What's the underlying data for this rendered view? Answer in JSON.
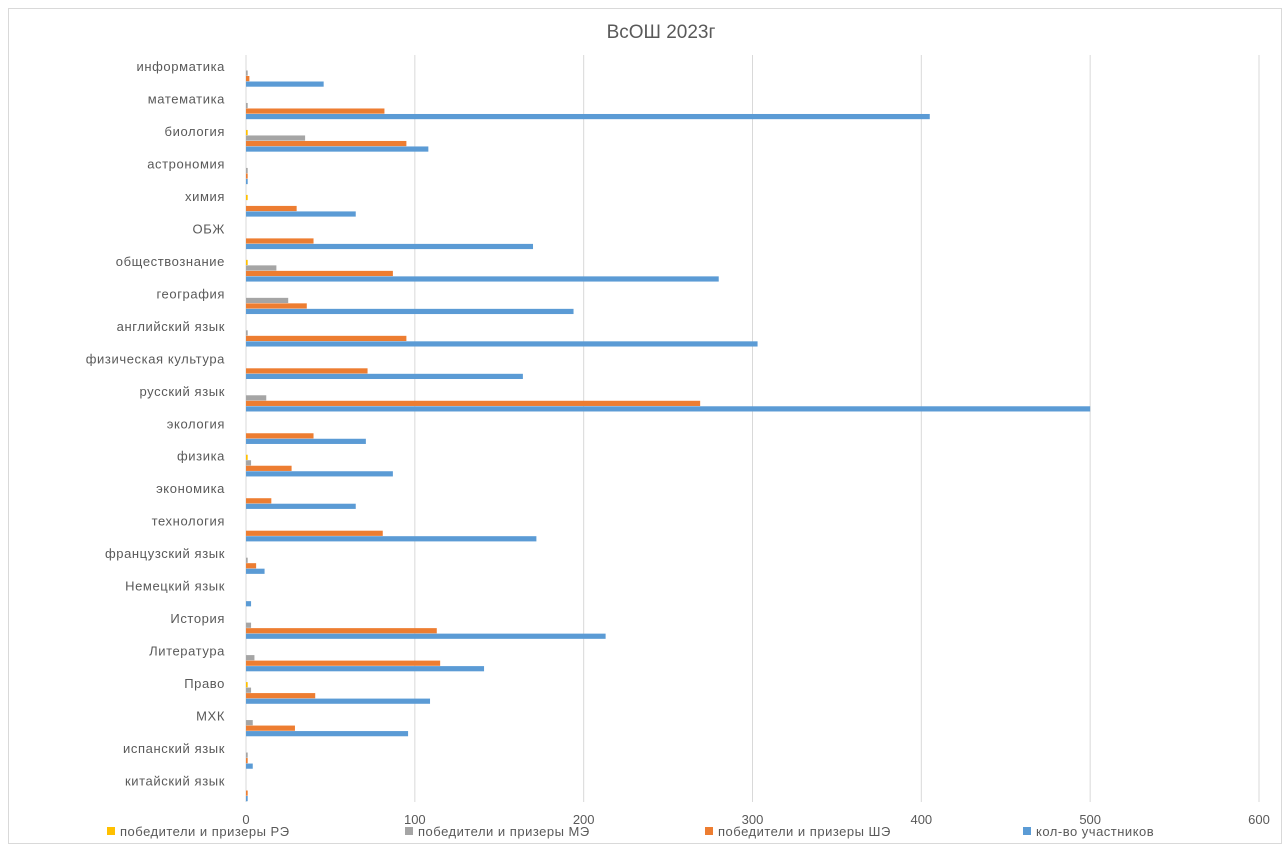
{
  "chart_data": {
    "type": "bar",
    "orientation": "horizontal",
    "title": "ВсОШ 2023г",
    "xlabel": "",
    "ylabel": "",
    "xlim": [
      0,
      600
    ],
    "xticks": [
      0,
      100,
      200,
      300,
      400,
      500,
      600
    ],
    "grid": "vertical",
    "legend_position": "bottom",
    "categories": [
      "информатика",
      "математика",
      "биология",
      "астрономия",
      "химия",
      "ОБЖ",
      "обществознание",
      "география",
      "английский язык",
      "физическая культура",
      "русский язык",
      "экология",
      "физика",
      "экономика",
      "технология",
      "французский язык",
      "Немецкий язык",
      "История",
      "Литература",
      "Право",
      "МХК",
      "испанский язык",
      "китайский язык"
    ],
    "series": [
      {
        "name": "победители и призеры РЭ",
        "color": "#ffc000",
        "values": [
          0,
          0,
          1,
          0,
          1,
          0,
          1,
          0,
          0,
          0,
          0,
          0,
          1,
          0,
          0,
          0,
          0,
          0,
          0,
          1,
          0,
          0,
          0
        ]
      },
      {
        "name": "победители и призеры МЭ",
        "color": "#a5a5a5",
        "values": [
          1,
          1,
          35,
          1,
          0,
          0,
          18,
          25,
          1,
          0,
          12,
          0,
          3,
          0,
          0,
          1,
          0,
          3,
          5,
          3,
          4,
          1,
          0
        ]
      },
      {
        "name": "победители и призеры ШЭ",
        "color": "#ed7d31",
        "values": [
          2,
          82,
          95,
          1,
          30,
          40,
          87,
          36,
          95,
          72,
          269,
          40,
          27,
          15,
          81,
          6,
          0,
          113,
          115,
          41,
          29,
          1,
          1
        ]
      },
      {
        "name": "кол-во участников",
        "color": "#5b9bd5",
        "values": [
          46,
          405,
          108,
          1,
          65,
          170,
          280,
          194,
          303,
          164,
          500,
          71,
          87,
          65,
          172,
          11,
          3,
          213,
          141,
          109,
          96,
          4,
          1
        ]
      }
    ]
  }
}
